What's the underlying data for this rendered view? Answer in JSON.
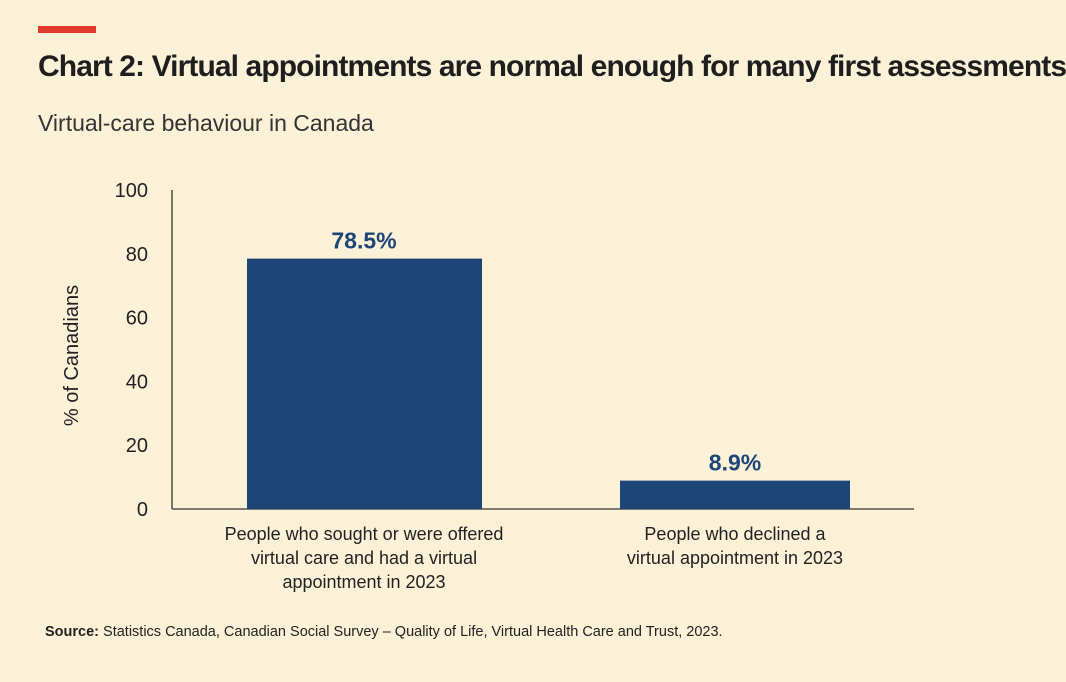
{
  "colors": {
    "background": "#fbf1d7",
    "accent": "#e03a2f",
    "bar": "#1d4577",
    "data_label": "#1d4577",
    "axis": "#333333",
    "text": "#222222"
  },
  "source": {
    "label": "Source:",
    "text": " Statistics Canada, Canadian Social Survey – Quality of Life, Virtual Health Care and Trust, 2023."
  },
  "chart_data": {
    "type": "bar",
    "title": "Chart 2: Virtual appointments are normal enough for many first assessments",
    "subtitle": "Virtual-care behaviour in Canada",
    "xlabel": "",
    "ylabel": "% of Canadians",
    "ylim": [
      0,
      100
    ],
    "yticks": [
      0,
      20,
      40,
      60,
      80,
      100
    ],
    "grid": false,
    "categories": [
      [
        "People who sought or were offered",
        "virtual care and had a virtual",
        "appointment in 2023"
      ],
      [
        "People who declined a",
        "virtual appointment in 2023"
      ]
    ],
    "values": [
      78.5,
      8.9
    ],
    "data_labels": [
      "78.5%",
      "8.9%"
    ]
  }
}
